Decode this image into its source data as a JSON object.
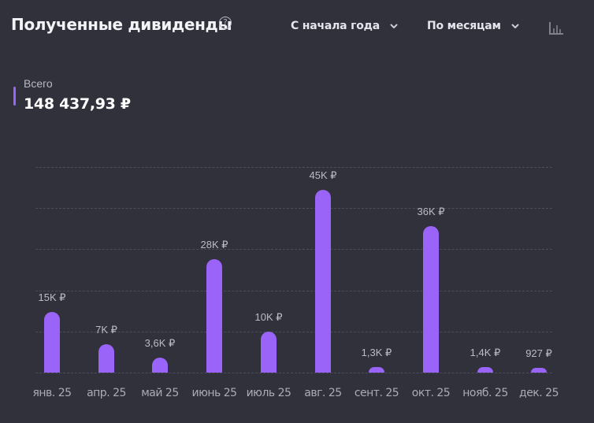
{
  "header": {
    "title": "Полученные дивиденды",
    "help_icon": "question-circle-icon",
    "period_dropdown": "С начала года",
    "grouping_dropdown": "По месяцам",
    "chart_type_icon": "bar-chart-icon"
  },
  "summary": {
    "label": "Всего",
    "value": "148 437,93 ₽"
  },
  "colors": {
    "background": "#31313c",
    "bar": "#9a64f8",
    "grid": "#4c4d5a",
    "text_muted": "#a9acb6"
  },
  "chart_data": {
    "type": "bar",
    "title": "Полученные дивиденды",
    "xlabel": "",
    "ylabel": "",
    "ylim": [
      0,
      50000
    ],
    "grid": true,
    "categories": [
      "янв. 25",
      "апр. 25",
      "май 25",
      "июнь 25",
      "июль 25",
      "авг. 25",
      "сент. 25",
      "окт. 25",
      "нояб. 25",
      "дек. 25"
    ],
    "values": [
      15000,
      7000,
      3600,
      28000,
      10000,
      45000,
      1300,
      36000,
      1400,
      927
    ],
    "labels": [
      "15K ₽",
      "7K ₽",
      "3,6K ₽",
      "28K ₽",
      "10K ₽",
      "45K ₽",
      "1,3K ₽",
      "36K ₽",
      "1,4K ₽",
      "927 ₽"
    ],
    "total": "148 437,93 ₽"
  }
}
